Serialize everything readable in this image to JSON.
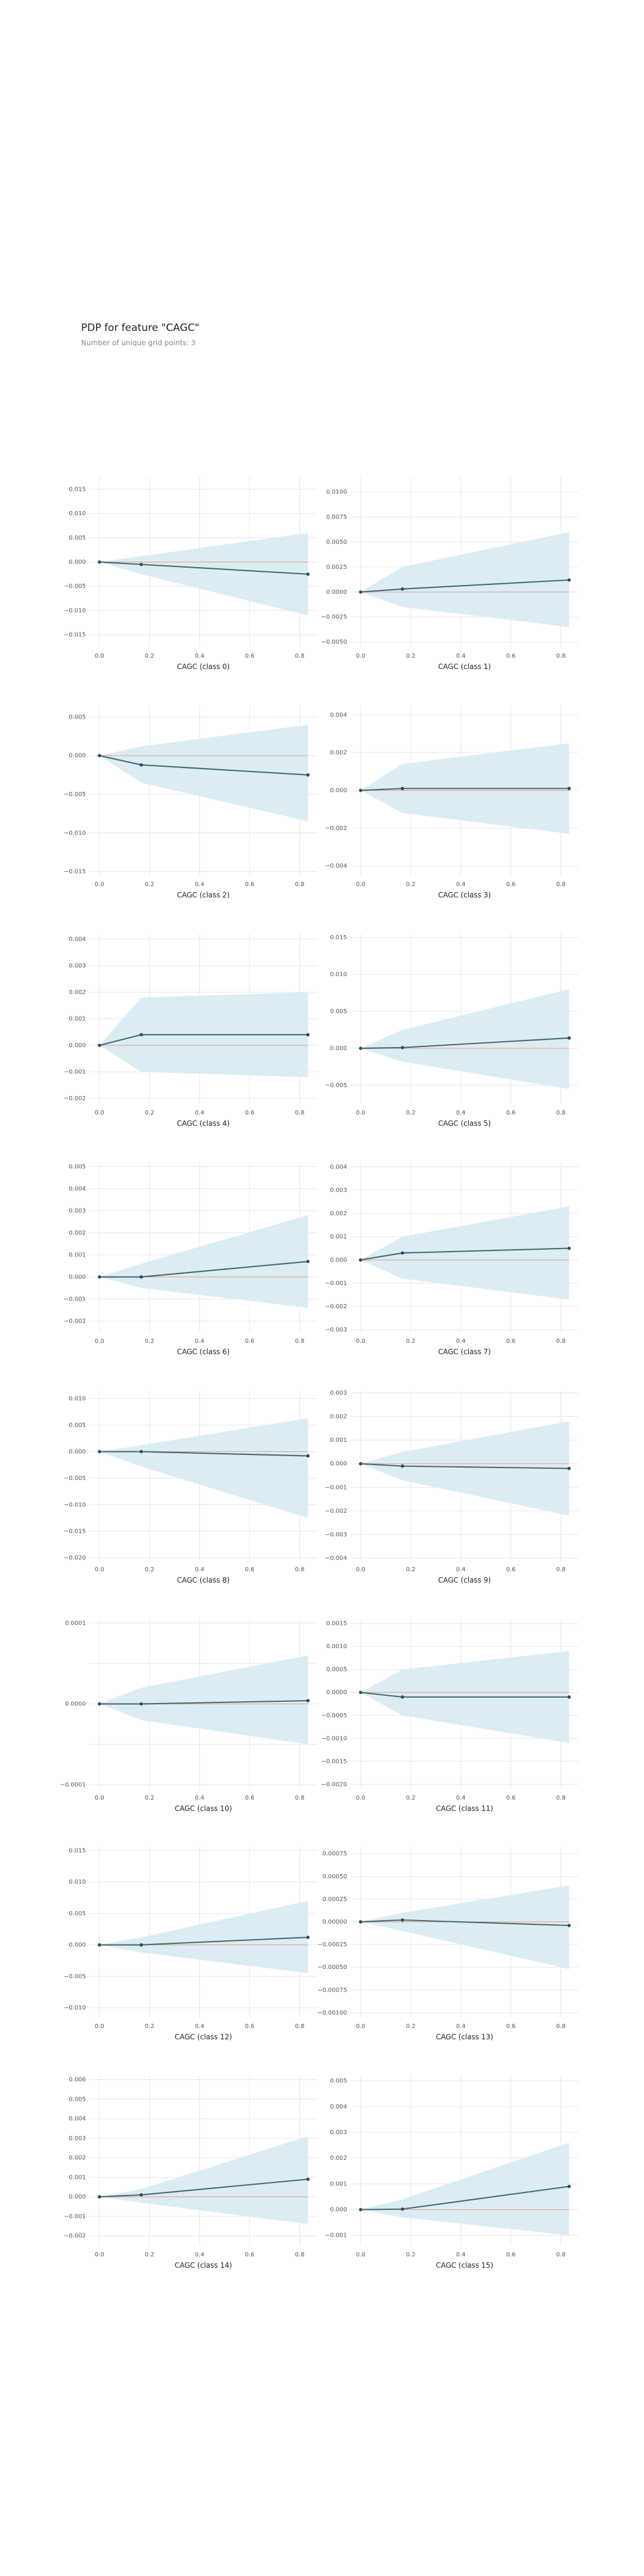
{
  "header": {
    "title": "PDP for feature \"CAGC\"",
    "subtitle": "Number of unique grid points: 3"
  },
  "colors": {
    "ice": "#dcecf4",
    "line": "#4a6b72",
    "baseline": "#e0a990",
    "grid": "#e6e6e6"
  },
  "chart_data": [
    {
      "type": "line",
      "xlabel": "CAGC (class 0)",
      "x": [
        0,
        0.167,
        0.833
      ],
      "y": [
        0.0,
        -0.0005,
        -0.0025
      ],
      "upper": [
        0.0,
        0.0012,
        0.006
      ],
      "lower": [
        0.0,
        -0.0025,
        -0.011
      ],
      "ylim": [
        -0.0175,
        0.0175
      ],
      "yticks": [
        -0.015,
        -0.01,
        -0.005,
        0.0,
        0.005,
        0.01,
        0.015
      ],
      "ytick_labels": [
        "−0.015",
        "−0.010",
        "−0.005",
        "0.000",
        "0.005",
        "0.010",
        "0.015"
      ],
      "xticks": [
        0,
        0.2,
        0.4,
        0.6,
        0.8
      ],
      "xtick_labels": [
        "0.0",
        "0.2",
        "0.4",
        "0.6",
        "0.8"
      ]
    },
    {
      "type": "line",
      "xlabel": "CAGC (class 1)",
      "x": [
        0,
        0.167,
        0.833
      ],
      "y": [
        0.0,
        0.0003,
        0.0012
      ],
      "upper": [
        0.0,
        0.0025,
        0.006
      ],
      "lower": [
        0.0,
        -0.0015,
        -0.0035
      ],
      "ylim": [
        -0.0055,
        0.0115
      ],
      "yticks": [
        -0.005,
        -0.0025,
        0.0,
        0.0025,
        0.005,
        0.0075,
        0.01
      ],
      "ytick_labels": [
        "−0.0050",
        "−0.0025",
        "0.0000",
        "0.0025",
        "0.0050",
        "0.0075",
        "0.0100"
      ],
      "xticks": [
        0,
        0.2,
        0.4,
        0.6,
        0.8
      ],
      "xtick_labels": [
        "0.0",
        "0.2",
        "0.4",
        "0.6",
        "0.8"
      ]
    },
    {
      "type": "line",
      "xlabel": "CAGC (class 2)",
      "x": [
        0,
        0.167,
        0.833
      ],
      "y": [
        0.0,
        -0.0012,
        -0.0025
      ],
      "upper": [
        0.0,
        0.0012,
        0.004
      ],
      "lower": [
        0.0,
        -0.0035,
        -0.0085
      ],
      "ylim": [
        -0.0155,
        0.0065
      ],
      "yticks": [
        -0.015,
        -0.01,
        -0.005,
        0.0,
        0.005
      ],
      "ytick_labels": [
        "−0.015",
        "−0.010",
        "−0.005",
        "0.000",
        "0.005"
      ],
      "xticks": [
        0,
        0.2,
        0.4,
        0.6,
        0.8
      ],
      "xtick_labels": [
        "0.0",
        "0.2",
        "0.4",
        "0.6",
        "0.8"
      ]
    },
    {
      "type": "line",
      "xlabel": "CAGC (class 3)",
      "x": [
        0,
        0.167,
        0.833
      ],
      "y": [
        0.0,
        0.0001,
        0.0001
      ],
      "upper": [
        0.0,
        0.0014,
        0.0025
      ],
      "lower": [
        0.0,
        -0.0012,
        -0.0023
      ],
      "ylim": [
        -0.0045,
        0.0045
      ],
      "yticks": [
        -0.004,
        -0.002,
        0.0,
        0.002,
        0.004
      ],
      "ytick_labels": [
        "−0.004",
        "−0.002",
        "0.000",
        "0.002",
        "0.004"
      ],
      "xticks": [
        0,
        0.2,
        0.4,
        0.6,
        0.8
      ],
      "xtick_labels": [
        "0.0",
        "0.2",
        "0.4",
        "0.6",
        "0.8"
      ]
    },
    {
      "type": "line",
      "xlabel": "CAGC (class 4)",
      "x": [
        0,
        0.167,
        0.833
      ],
      "y": [
        0.0,
        0.0004,
        0.0004
      ],
      "upper": [
        0.0,
        0.0018,
        0.002
      ],
      "lower": [
        0.0,
        -0.001,
        -0.0012
      ],
      "ylim": [
        -0.0022,
        0.0042
      ],
      "yticks": [
        -0.002,
        -0.001,
        0.0,
        0.001,
        0.002,
        0.003,
        0.004
      ],
      "ytick_labels": [
        "−0.002",
        "−0.001",
        "0.000",
        "0.001",
        "0.002",
        "0.003",
        "0.004"
      ],
      "xticks": [
        0,
        0.2,
        0.4,
        0.6,
        0.8
      ],
      "xtick_labels": [
        "0.0",
        "0.2",
        "0.4",
        "0.6",
        "0.8"
      ]
    },
    {
      "type": "line",
      "xlabel": "CAGC (class 5)",
      "x": [
        0,
        0.167,
        0.833
      ],
      "y": [
        0.0,
        0.0001,
        0.0014
      ],
      "upper": [
        0.0,
        0.0025,
        0.008
      ],
      "lower": [
        0.0,
        -0.0018,
        -0.0055
      ],
      "ylim": [
        -0.0075,
        0.0155
      ],
      "yticks": [
        -0.005,
        0.0,
        0.005,
        0.01,
        0.015
      ],
      "ytick_labels": [
        "−0.005",
        "0.000",
        "0.005",
        "0.010",
        "0.015"
      ],
      "xticks": [
        0,
        0.2,
        0.4,
        0.6,
        0.8
      ],
      "xtick_labels": [
        "0.0",
        "0.2",
        "0.4",
        "0.6",
        "0.8"
      ]
    },
    {
      "type": "line",
      "xlabel": "CAGC (class 6)",
      "x": [
        0,
        0.167,
        0.833
      ],
      "y": [
        0.0,
        0.0,
        0.0007
      ],
      "upper": [
        0.0,
        0.0006,
        0.0028
      ],
      "lower": [
        0.0,
        -0.0005,
        -0.0014
      ],
      "ylim": [
        -0.0025,
        0.0052
      ],
      "yticks": [
        -0.002,
        -0.001,
        0.0,
        0.001,
        0.002,
        0.003,
        0.004,
        0.005
      ],
      "ytick_labels": [
        "−0.002",
        "−0.001",
        "0.000",
        "0.001",
        "0.002",
        "0.003",
        "0.004",
        "0.005"
      ],
      "xticks": [
        0,
        0.2,
        0.4,
        0.6,
        0.8
      ],
      "xtick_labels": [
        "0.0",
        "0.2",
        "0.4",
        "0.6",
        "0.8"
      ]
    },
    {
      "type": "line",
      "xlabel": "CAGC (class 7)",
      "x": [
        0,
        0.167,
        0.833
      ],
      "y": [
        0.0,
        0.0003,
        0.0005
      ],
      "upper": [
        0.0,
        0.001,
        0.0023
      ],
      "lower": [
        0.0,
        -0.0008,
        -0.0017
      ],
      "ylim": [
        -0.0031,
        0.0042
      ],
      "yticks": [
        -0.003,
        -0.002,
        -0.001,
        0.0,
        0.001,
        0.002,
        0.003,
        0.004
      ],
      "ytick_labels": [
        "−0.003",
        "−0.002",
        "−0.001",
        "0.000",
        "0.001",
        "0.002",
        "0.003",
        "0.004"
      ],
      "xticks": [
        0,
        0.2,
        0.4,
        0.6,
        0.8
      ],
      "xtick_labels": [
        "0.0",
        "0.2",
        "0.4",
        "0.6",
        "0.8"
      ]
    },
    {
      "type": "line",
      "xlabel": "CAGC (class 8)",
      "x": [
        0,
        0.167,
        0.833
      ],
      "y": [
        0.0,
        0.0,
        -0.0008
      ],
      "upper": [
        0.0,
        0.0012,
        0.0063
      ],
      "lower": [
        0.0,
        -0.0028,
        -0.0125
      ],
      "ylim": [
        -0.0205,
        0.0115
      ],
      "yticks": [
        -0.02,
        -0.015,
        -0.01,
        -0.005,
        0.0,
        0.005,
        0.01
      ],
      "ytick_labels": [
        "−0.020",
        "−0.015",
        "−0.010",
        "−0.005",
        "0.000",
        "0.005",
        "0.010"
      ],
      "xticks": [
        0,
        0.2,
        0.4,
        0.6,
        0.8
      ],
      "xtick_labels": [
        "0.0",
        "0.2",
        "0.4",
        "0.6",
        "0.8"
      ]
    },
    {
      "type": "line",
      "xlabel": "CAGC (class 9)",
      "x": [
        0,
        0.167,
        0.833
      ],
      "y": [
        0.0,
        -0.0001,
        -0.0002
      ],
      "upper": [
        0.0,
        0.0005,
        0.0018
      ],
      "lower": [
        0.0,
        -0.0007,
        -0.0022
      ],
      "ylim": [
        -0.0041,
        0.0031
      ],
      "yticks": [
        -0.004,
        -0.003,
        -0.002,
        -0.001,
        0.0,
        0.001,
        0.002,
        0.003
      ],
      "ytick_labels": [
        "−0.004",
        "−0.003",
        "−0.002",
        "−0.001",
        "0.000",
        "0.001",
        "0.002",
        "0.003"
      ],
      "xticks": [
        0,
        0.2,
        0.4,
        0.6,
        0.8
      ],
      "xtick_labels": [
        "0.0",
        "0.2",
        "0.4",
        "0.6",
        "0.8"
      ]
    },
    {
      "type": "line",
      "xlabel": "CAGC (class 10)",
      "x": [
        0,
        0.167,
        0.833
      ],
      "y": [
        0.0,
        0.0,
        4e-06
      ],
      "upper": [
        0.0,
        2e-05,
        6e-05
      ],
      "lower": [
        0.0,
        -2e-05,
        -5e-05
      ],
      "ylim": [
        -0.000105,
        0.000105
      ],
      "yticks": [
        -0.0001,
        -5e-05,
        0.0,
        5e-05,
        0.0001
      ],
      "ytick_labels": [
        "−0.0001",
        "",
        "0.0000",
        "",
        "0.0001"
      ],
      "xticks": [
        0,
        0.2,
        0.4,
        0.6,
        0.8
      ],
      "xtick_labels": [
        "0.0",
        "0.2",
        "0.4",
        "0.6",
        "0.8"
      ]
    },
    {
      "type": "line",
      "xlabel": "CAGC (class 11)",
      "x": [
        0,
        0.167,
        0.833
      ],
      "y": [
        0.0,
        -0.0001,
        -0.0001
      ],
      "upper": [
        0.0,
        0.0005,
        0.0009
      ],
      "lower": [
        0.0,
        -0.0005,
        -0.0011
      ],
      "ylim": [
        -0.0021,
        0.0016
      ],
      "yticks": [
        -0.002,
        -0.0015,
        -0.001,
        -0.0005,
        0.0,
        0.0005,
        0.001,
        0.0015
      ],
      "ytick_labels": [
        "−0.0020",
        "−0.0015",
        "−0.0010",
        "−0.0005",
        "0.0000",
        "0.0005",
        "0.0010",
        "0.0015"
      ],
      "xticks": [
        0,
        0.2,
        0.4,
        0.6,
        0.8
      ],
      "xtick_labels": [
        "0.0",
        "0.2",
        "0.4",
        "0.6",
        "0.8"
      ]
    },
    {
      "type": "line",
      "xlabel": "CAGC (class 12)",
      "x": [
        0,
        0.167,
        0.833
      ],
      "y": [
        0.0,
        0.0,
        0.0012
      ],
      "upper": [
        0.0,
        0.0012,
        0.007
      ],
      "lower": [
        0.0,
        -0.0012,
        -0.0045
      ],
      "ylim": [
        -0.0115,
        0.0155
      ],
      "yticks": [
        -0.01,
        -0.005,
        0.0,
        0.005,
        0.01,
        0.015
      ],
      "ytick_labels": [
        "−0.010",
        "−0.005",
        "0.000",
        "0.005",
        "0.010",
        "0.015"
      ],
      "xticks": [
        0,
        0.2,
        0.4,
        0.6,
        0.8
      ],
      "xtick_labels": [
        "0.0",
        "0.2",
        "0.4",
        "0.6",
        "0.8"
      ]
    },
    {
      "type": "line",
      "xlabel": "CAGC (class 13)",
      "x": [
        0,
        0.167,
        0.833
      ],
      "y": [
        0.0,
        2e-05,
        -4e-05
      ],
      "upper": [
        0.0,
        0.0001,
        0.0004
      ],
      "lower": [
        0.0,
        -0.0001,
        -0.00052
      ],
      "ylim": [
        -0.00105,
        0.00082
      ],
      "yticks": [
        -0.001,
        -0.00075,
        -0.0005,
        -0.00025,
        0.0,
        0.00025,
        0.0005,
        0.00075
      ],
      "ytick_labels": [
        "−0.00100",
        "−0.00075",
        "−0.00050",
        "−0.00025",
        "0.00000",
        "0.00025",
        "0.00050",
        "0.00075"
      ],
      "xticks": [
        0,
        0.2,
        0.4,
        0.6,
        0.8
      ],
      "xtick_labels": [
        "0.0",
        "0.2",
        "0.4",
        "0.6",
        "0.8"
      ]
    },
    {
      "type": "line",
      "xlabel": "CAGC (class 14)",
      "x": [
        0,
        0.167,
        0.833
      ],
      "y": [
        0.0,
        0.0001,
        0.0009
      ],
      "upper": [
        0.0,
        0.0004,
        0.0031
      ],
      "lower": [
        0.0,
        -0.0003,
        -0.0014
      ],
      "ylim": [
        -0.0025,
        0.0062
      ],
      "yticks": [
        -0.002,
        -0.001,
        0.0,
        0.001,
        0.002,
        0.003,
        0.004,
        0.005,
        0.006
      ],
      "ytick_labels": [
        "−0.002",
        "−0.001",
        "0.000",
        "0.001",
        "0.002",
        "0.003",
        "0.004",
        "0.005",
        "0.006"
      ],
      "xticks": [
        0,
        0.2,
        0.4,
        0.6,
        0.8
      ],
      "xtick_labels": [
        "0.0",
        "0.2",
        "0.4",
        "0.6",
        "0.8"
      ]
    },
    {
      "type": "line",
      "xlabel": "CAGC (class 15)",
      "x": [
        0,
        0.167,
        0.833
      ],
      "y": [
        0.0,
        2e-05,
        0.0009
      ],
      "upper": [
        0.0,
        0.0004,
        0.0026
      ],
      "lower": [
        0.0,
        -0.0003,
        -0.001
      ],
      "ylim": [
        -0.0014,
        0.0052
      ],
      "yticks": [
        -0.001,
        0.0,
        0.001,
        0.002,
        0.003,
        0.004,
        0.005
      ],
      "ytick_labels": [
        "−0.001",
        "0.000",
        "0.001",
        "0.002",
        "0.003",
        "0.004",
        "0.005"
      ],
      "xticks": [
        0,
        0.2,
        0.4,
        0.6,
        0.8
      ],
      "xtick_labels": [
        "0.0",
        "0.2",
        "0.4",
        "0.6",
        "0.8"
      ]
    }
  ]
}
